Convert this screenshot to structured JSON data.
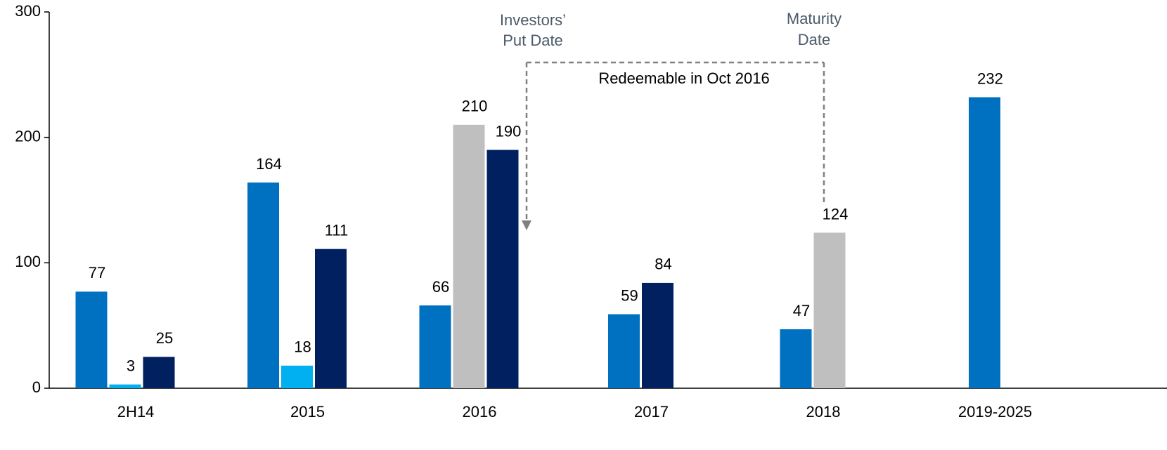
{
  "chart_data": {
    "type": "bar",
    "categories": [
      "2H14",
      "2015",
      "2016",
      "2017",
      "2018",
      "2019-2025"
    ],
    "series": [
      {
        "color": "#0070c0",
        "values": [
          77,
          164,
          66,
          59,
          47,
          232
        ]
      },
      {
        "color": "#00b0f0",
        "values": [
          3,
          18,
          null,
          null,
          null,
          null
        ]
      },
      {
        "color": "#bfbfbf",
        "values": [
          null,
          null,
          210,
          null,
          124,
          null
        ]
      },
      {
        "color": "#002060",
        "values": [
          25,
          111,
          190,
          84,
          null,
          null
        ]
      }
    ],
    "ylim": [
      0,
      300
    ],
    "yticks": [
      0,
      100,
      200,
      300
    ],
    "grid": false,
    "annotations": [
      {
        "lines": [
          "Investors’",
          "Put Date"
        ]
      },
      {
        "lines": [
          "Maturity",
          "Date"
        ]
      },
      {
        "lines": [
          "Redeemable in Oct 2016"
        ]
      }
    ]
  }
}
